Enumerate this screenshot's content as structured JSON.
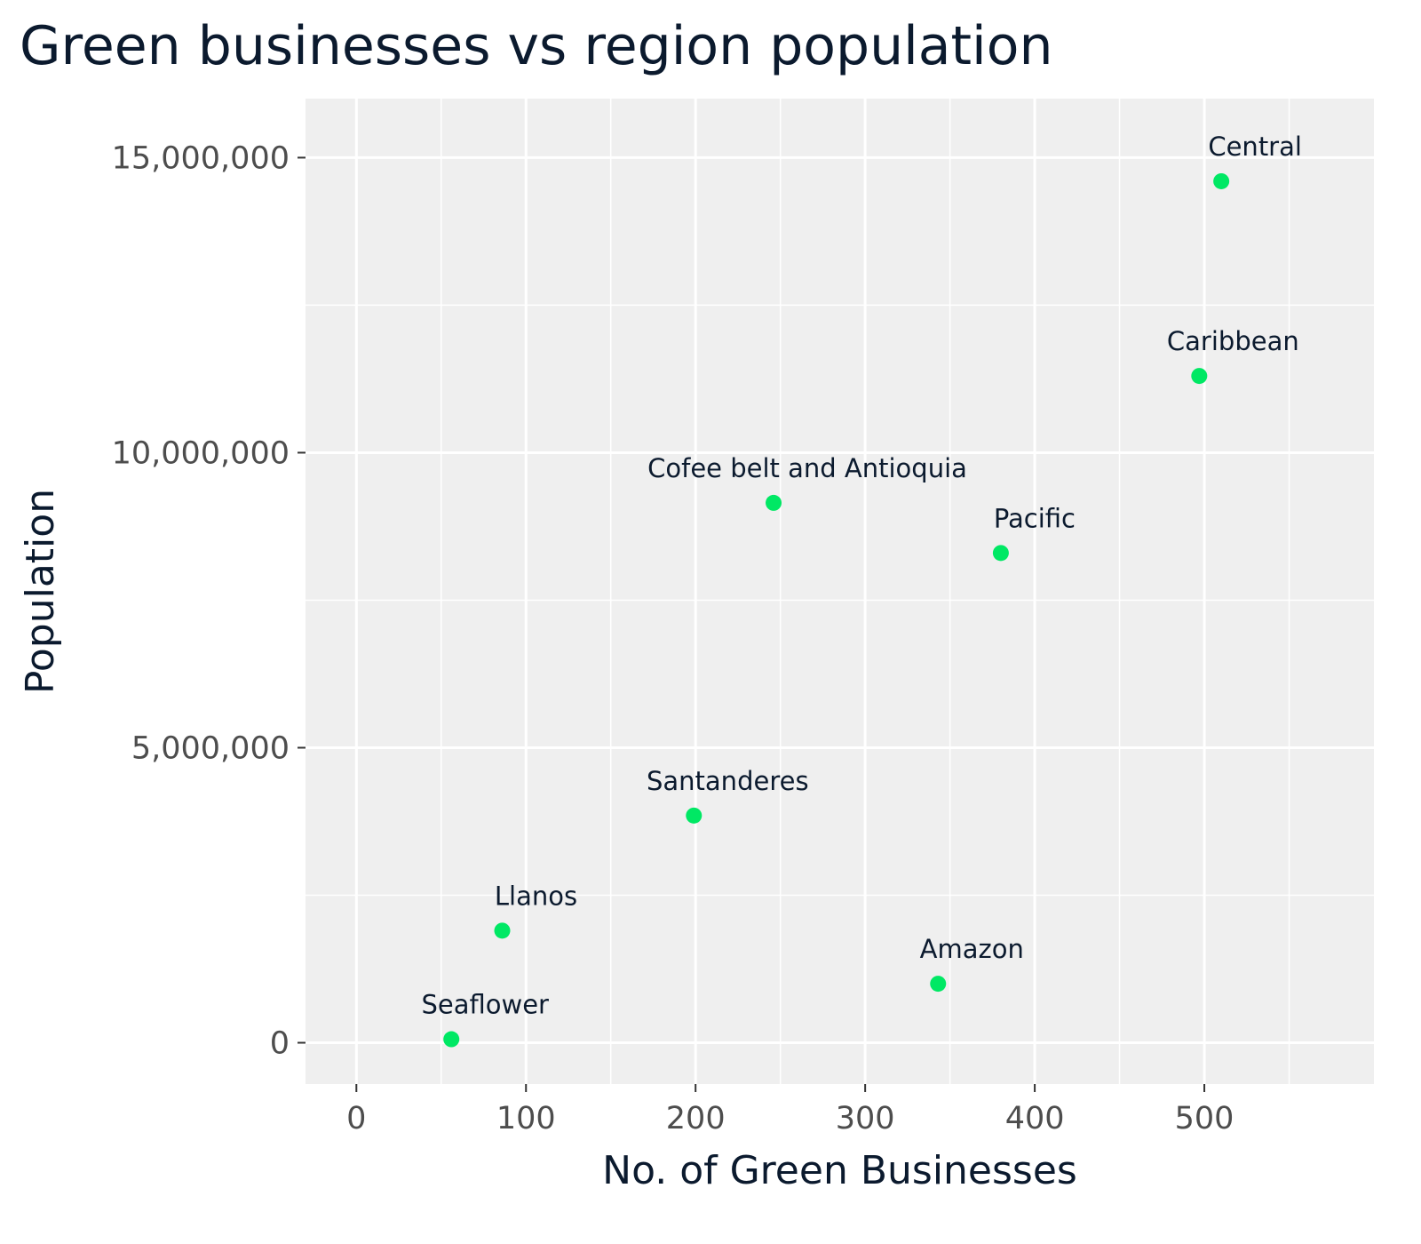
{
  "chart_data": {
    "type": "scatter",
    "title": "Green businesses vs region population",
    "xlabel": "No. of Green Businesses",
    "ylabel": "Population",
    "xlim": [
      -30,
      600
    ],
    "ylim": [
      -700000,
      16000000
    ],
    "x_ticks": [
      0,
      100,
      200,
      300,
      400,
      500
    ],
    "x_tick_labels": [
      "0",
      "100",
      "200",
      "300",
      "400",
      "500"
    ],
    "x_minor_ticks": [
      50,
      150,
      250,
      350,
      450,
      550
    ],
    "y_ticks": [
      0,
      5000000,
      10000000,
      15000000
    ],
    "y_tick_labels": [
      "0",
      "5,000,000",
      "10,000,000",
      "15,000,000"
    ],
    "y_minor_ticks": [
      2500000,
      7500000,
      12500000
    ],
    "grid": true,
    "legend": "none",
    "colors": {
      "point": "#00e864",
      "panel": "#efefef",
      "grid": "#ffffff",
      "title": "#0b1a2e",
      "tick_label": "#4d4d4d"
    },
    "points": [
      {
        "label": "Central",
        "x": 510,
        "y": 14600000
      },
      {
        "label": "Caribbean",
        "x": 497,
        "y": 11300000
      },
      {
        "label": "Cofee belt and Antioquia",
        "x": 246,
        "y": 9150000
      },
      {
        "label": "Pacific",
        "x": 380,
        "y": 8300000
      },
      {
        "label": "Santanderes",
        "x": 199,
        "y": 3850000
      },
      {
        "label": "Llanos",
        "x": 86,
        "y": 1900000
      },
      {
        "label": "Amazon",
        "x": 343,
        "y": 1000000
      },
      {
        "label": "Seaflower",
        "x": 56,
        "y": 60000
      }
    ]
  }
}
